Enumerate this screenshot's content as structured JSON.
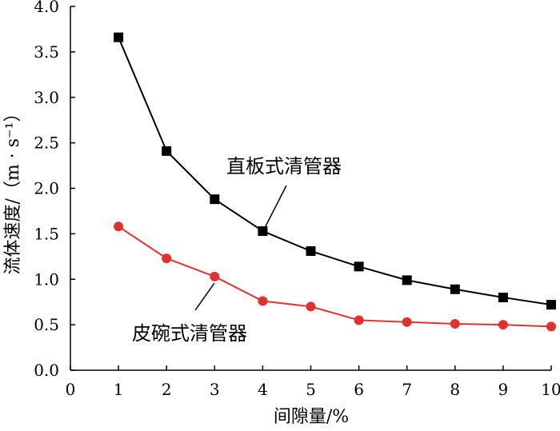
{
  "chart_data": {
    "type": "line",
    "xlabel": "间隙量/%",
    "ylabel": "流体速度/（m · s⁻¹）",
    "xlim": [
      0,
      10
    ],
    "ylim": [
      0,
      4.0
    ],
    "xticks": [
      "0",
      "1",
      "2",
      "3",
      "4",
      "5",
      "6",
      "7",
      "8",
      "9",
      "10"
    ],
    "yticks": [
      "0.0",
      "0.5",
      "1.0",
      "1.5",
      "2.0",
      "2.5",
      "3.0",
      "3.5",
      "4.0"
    ],
    "grid": false,
    "series": [
      {
        "name": "直板式清管器",
        "color": "#000000",
        "marker": "square",
        "x": [
          1,
          2,
          3,
          4,
          5,
          6,
          7,
          8,
          9,
          10
        ],
        "values": [
          3.66,
          2.41,
          1.88,
          1.53,
          1.31,
          1.14,
          0.99,
          0.89,
          0.8,
          0.72
        ]
      },
      {
        "name": "皮碗式清管器",
        "color": "#e03131",
        "marker": "circle",
        "x": [
          1,
          2,
          3,
          4,
          5,
          6,
          7,
          8,
          9,
          10
        ],
        "values": [
          1.58,
          1.23,
          1.03,
          0.76,
          0.7,
          0.55,
          0.53,
          0.51,
          0.5,
          0.48
        ]
      }
    ]
  }
}
